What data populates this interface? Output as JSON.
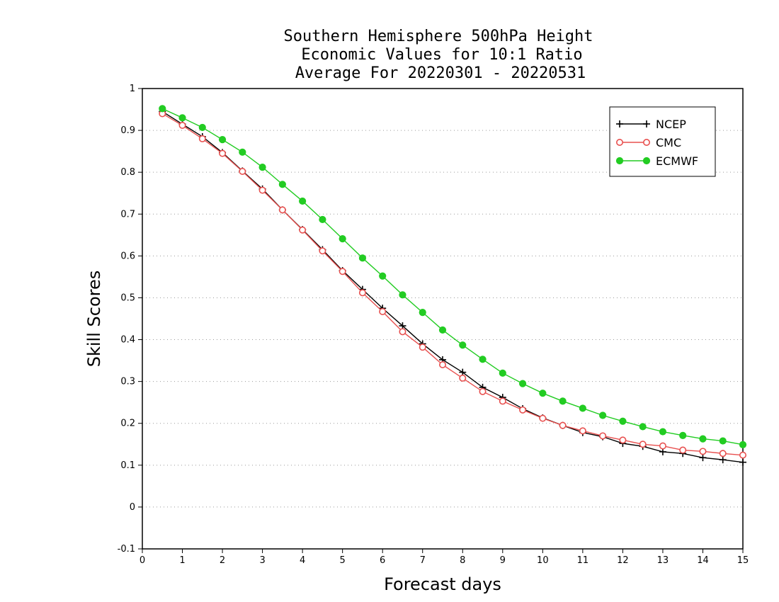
{
  "chart_data": {
    "type": "line",
    "title_lines": [
      "Southern Hemisphere 500hPa Height",
      "Economic Values for 10:1 Ratio",
      "Average For 20220301 - 20220531"
    ],
    "xlabel": "Forecast days",
    "ylabel": "Skill Scores",
    "xlim": [
      0,
      15
    ],
    "ylim": [
      -0.1,
      1
    ],
    "xticks": [
      0,
      1,
      2,
      3,
      4,
      5,
      6,
      7,
      8,
      9,
      10,
      11,
      12,
      13,
      14,
      15
    ],
    "xtick_labels": [
      "0",
      "1",
      "2",
      "3",
      "4",
      "5",
      "6",
      "7",
      "8",
      "9",
      "10",
      "11",
      "12",
      "13",
      "14",
      "15"
    ],
    "yticks": [
      -0.1,
      0,
      0.1,
      0.2,
      0.3,
      0.4,
      0.5,
      0.6,
      0.7,
      0.8,
      0.9,
      1
    ],
    "ytick_labels": [
      "-0.1",
      "0",
      "0.1",
      "0.2",
      "0.3",
      "0.4",
      "0.5",
      "0.6",
      "0.7",
      "0.8",
      "0.9",
      "1"
    ],
    "grid": true,
    "legend_position": "top-right",
    "x": [
      0.5,
      1,
      1.5,
      2,
      2.5,
      3,
      3.5,
      4,
      4.5,
      5,
      5.5,
      6,
      6.5,
      7,
      7.5,
      8,
      8.5,
      9,
      9.5,
      10,
      10.5,
      11,
      11.5,
      12,
      12.5,
      13,
      13.5,
      14,
      14.5,
      15
    ],
    "series": [
      {
        "name": "NCEP",
        "color": "#000000",
        "marker": "plus",
        "values": [
          0.945,
          0.915,
          0.885,
          0.847,
          0.803,
          0.76,
          0.71,
          0.663,
          0.615,
          0.565,
          0.52,
          0.475,
          0.433,
          0.39,
          0.352,
          0.322,
          0.286,
          0.262,
          0.235,
          0.213,
          0.195,
          0.178,
          0.168,
          0.152,
          0.145,
          0.132,
          0.128,
          0.118,
          0.113,
          0.107
        ]
      },
      {
        "name": "CMC",
        "color": "#e8504f",
        "marker": "open-circle",
        "values": [
          0.94,
          0.912,
          0.88,
          0.845,
          0.802,
          0.757,
          0.71,
          0.662,
          0.612,
          0.563,
          0.512,
          0.467,
          0.419,
          0.382,
          0.34,
          0.308,
          0.276,
          0.253,
          0.232,
          0.212,
          0.195,
          0.182,
          0.17,
          0.16,
          0.15,
          0.146,
          0.136,
          0.133,
          0.128,
          0.124
        ]
      },
      {
        "name": "ECMWF",
        "color": "#22cc22",
        "marker": "filled-circle",
        "values": [
          0.952,
          0.93,
          0.907,
          0.878,
          0.848,
          0.812,
          0.771,
          0.731,
          0.687,
          0.641,
          0.595,
          0.552,
          0.507,
          0.465,
          0.423,
          0.387,
          0.353,
          0.32,
          0.295,
          0.272,
          0.253,
          0.236,
          0.219,
          0.205,
          0.192,
          0.18,
          0.171,
          0.163,
          0.158,
          0.149
        ]
      }
    ]
  }
}
